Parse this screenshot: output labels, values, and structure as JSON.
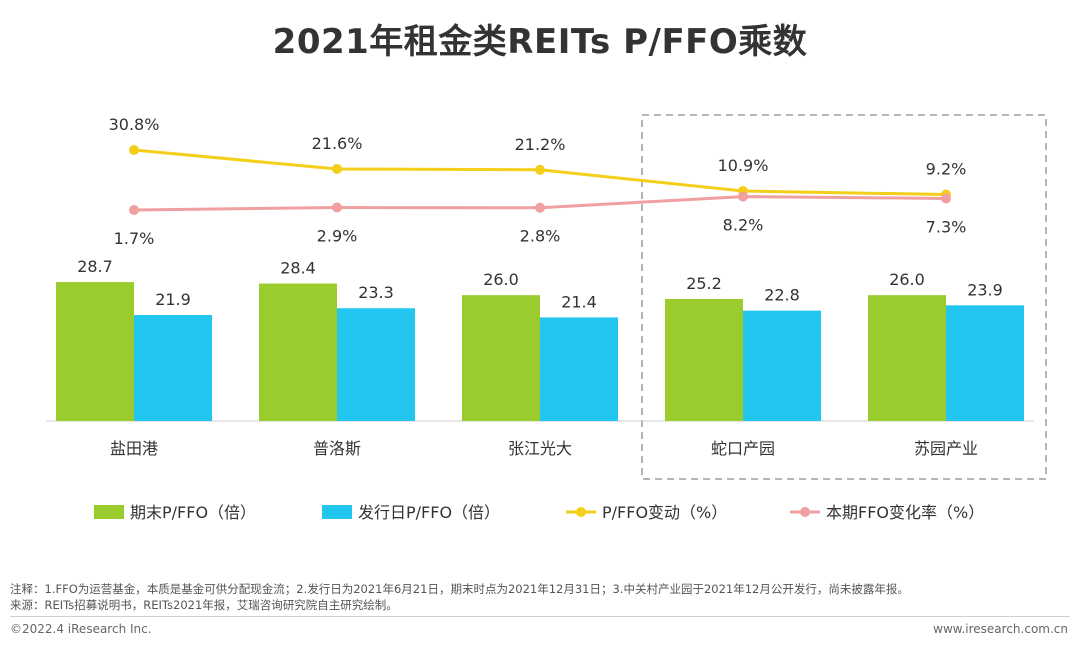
{
  "title": "2021年租金类REITs P/FFO乘数",
  "chart_data": {
    "type": "bar",
    "title": "2021年租金类REITs P/FFO乘数",
    "categories": [
      "盐田港",
      "普洛斯",
      "张江光大",
      "蛇口产园",
      "苏园产业"
    ],
    "series": [
      {
        "name": "期末P/FFO（倍）",
        "kind": "bar",
        "color": "#9bcc2e",
        "values": [
          28.7,
          28.4,
          26.0,
          25.2,
          26.0
        ]
      },
      {
        "name": "发行日P/FFO（倍）",
        "kind": "bar",
        "color": "#22c6ee",
        "values": [
          21.9,
          23.3,
          21.4,
          22.8,
          23.9
        ]
      },
      {
        "name": "P/FFO变动（%）",
        "kind": "line",
        "color": "#f3cf1a",
        "values": [
          30.8,
          21.6,
          21.2,
          10.9,
          9.2
        ],
        "labels": [
          "30.8%",
          "21.6%",
          "21.2%",
          "10.9%",
          "9.2%"
        ]
      },
      {
        "name": "本期FFO变化率（%）",
        "kind": "line",
        "color": "#f0a0a0",
        "values": [
          1.7,
          2.9,
          2.8,
          8.2,
          7.3
        ],
        "labels": [
          "1.7%",
          "2.9%",
          "2.8%",
          "8.2%",
          "7.3%"
        ]
      }
    ],
    "bar_labels": [
      [
        "28.7",
        "23.9"
      ]
    ],
    "ylim_bars": [
      0,
      30
    ],
    "ylim_lines": [
      0,
      35
    ],
    "highlight_categories": [
      "蛇口产园",
      "苏园产业"
    ],
    "legend": "bottom",
    "grid": false
  },
  "notes": {
    "line1": "注释：1.FFO为运营基金，本质是基金可供分配现金流；2.发行日为2021年6月21日，期末时点为2021年12月31日；3.中关村产业园于2021年12月公开发行，尚未披露年报。",
    "line2": "来源：REITs招募说明书，REITs2021年报，艾瑞咨询研究院自主研究绘制。"
  },
  "footer": {
    "copyright": "©2022.4 iResearch Inc.",
    "website": "www.iresearch.com.cn"
  }
}
